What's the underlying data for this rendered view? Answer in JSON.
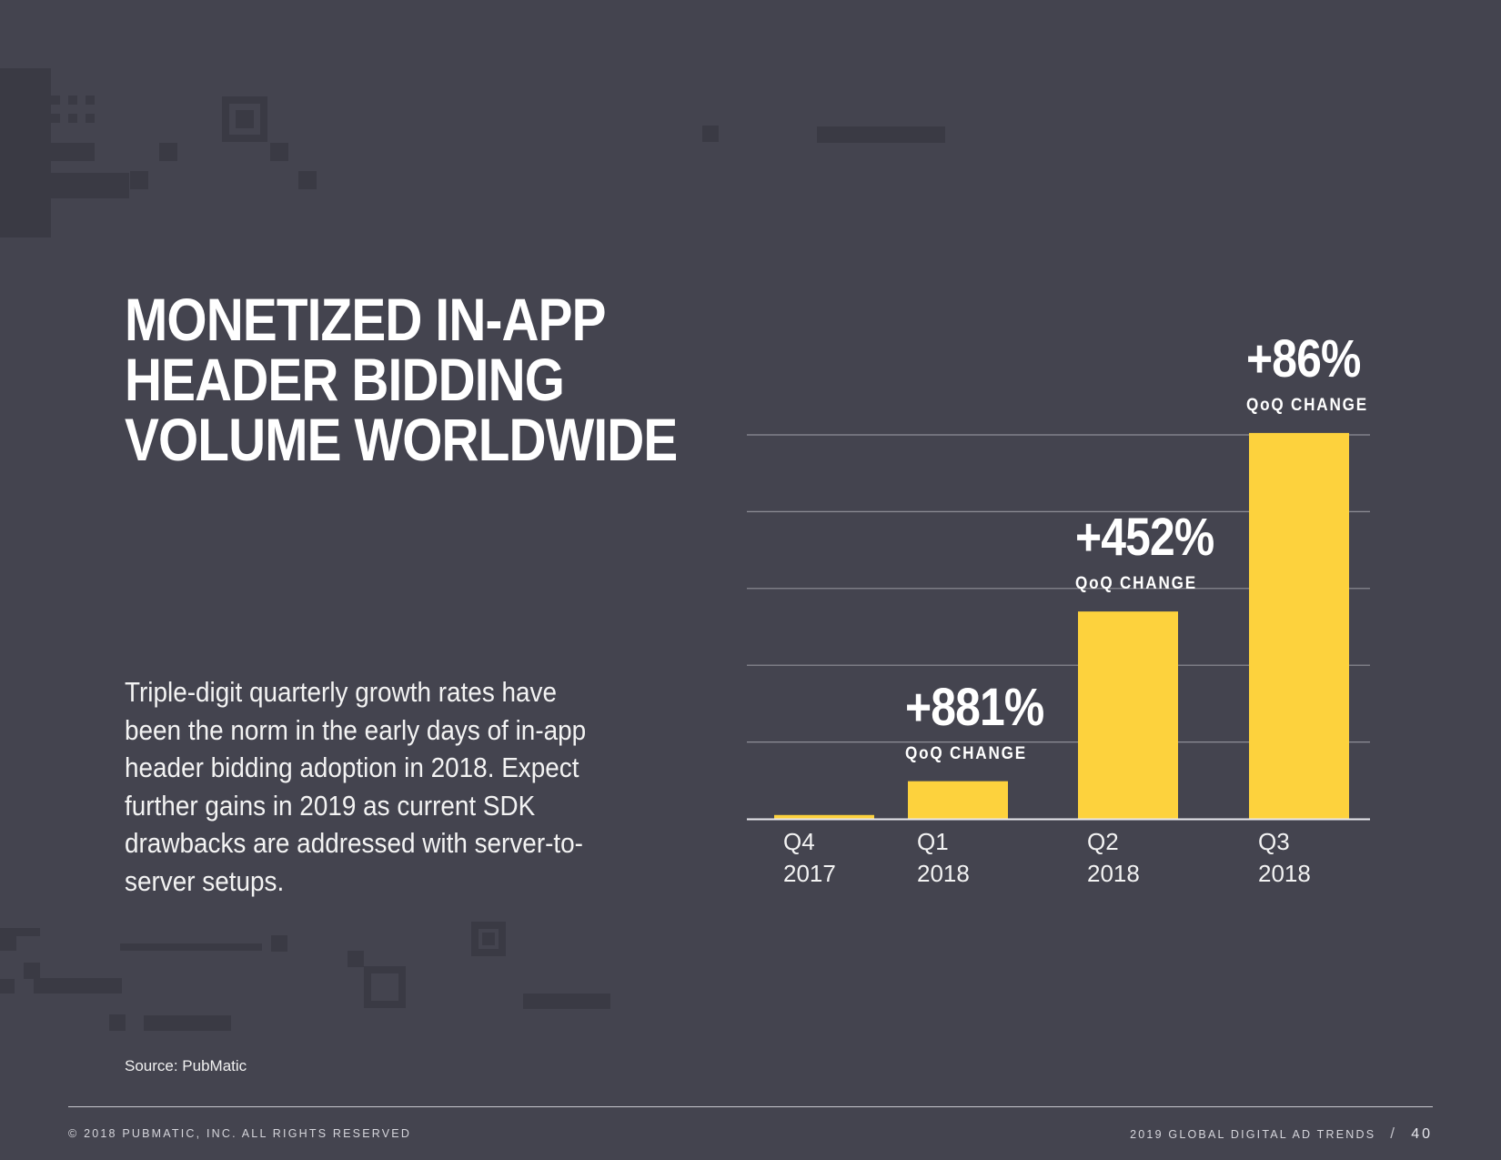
{
  "page": {
    "title_lines": [
      "MONETIZED IN-APP",
      "HEADER BIDDING",
      "VOLUME WORLDWIDE"
    ],
    "body_text": "Triple-digit quarterly growth rates have been the norm in the early days of in-app header bidding adoption in 2018. Expect further gains in 2019 as current SDK drawbacks are addressed with server-to-server setups.",
    "source": "Source: PubMatic",
    "footer_left": "© 2018 PUBMATIC, INC. ALL RIGHTS RESERVED",
    "footer_right": "2019 GLOBAL DIGITAL AD TRENDS",
    "footer_separator": "/",
    "page_number": "40"
  },
  "colors": {
    "background": "#44444f",
    "bar": "#fdd23d",
    "gridline": "#8e8e97",
    "axis": "#e8e8ee",
    "text": "#ffffff",
    "decoration": "#3a3a44"
  },
  "chart_data": {
    "type": "bar",
    "categories": [
      [
        "Q4",
        "2017"
      ],
      [
        "Q1",
        "2018"
      ],
      [
        "Q2",
        "2018"
      ],
      [
        "Q3",
        "2018"
      ]
    ],
    "values": [
      0.1,
      0.98,
      5.4,
      10.05
    ],
    "ylim": [
      0,
      10
    ],
    "y_gridlines": [
      2,
      4,
      6,
      8,
      10
    ],
    "y_tick_labels_shown": false,
    "grid": true,
    "legend": "none",
    "annotations": [
      {
        "category_index": 1,
        "value": "+881%",
        "caption": "QoQ CHANGE"
      },
      {
        "category_index": 2,
        "value": "+452%",
        "caption": "QoQ CHANGE"
      },
      {
        "category_index": 3,
        "value": "+86%",
        "caption": "QoQ CHANGE"
      }
    ]
  }
}
